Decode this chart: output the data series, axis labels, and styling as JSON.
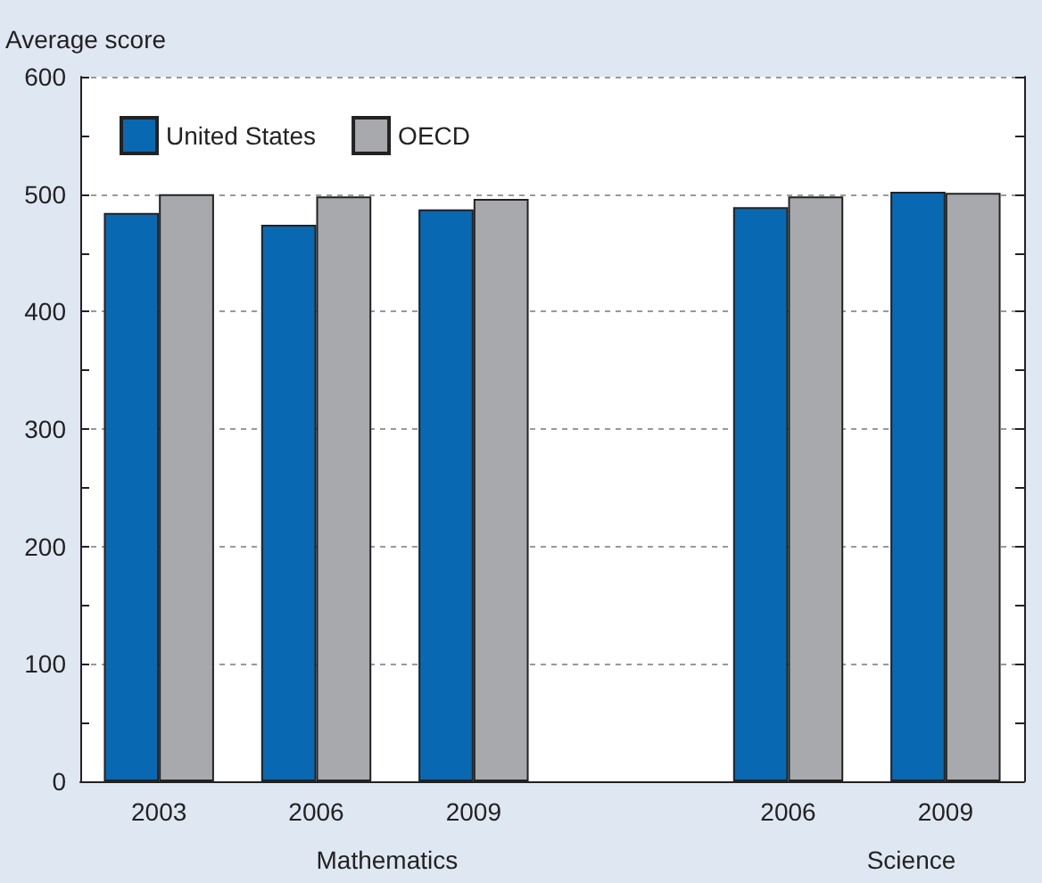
{
  "chart_data": {
    "type": "bar",
    "ylabel": "Average score",
    "categories": [
      "2003",
      "2006",
      "2009",
      null,
      "2006",
      "2009"
    ],
    "series": [
      {
        "name": "United States",
        "color": "#0868b2",
        "values": [
          484,
          474,
          487,
          null,
          489,
          502
        ]
      },
      {
        "name": "OECD",
        "color": "#a7a9ac",
        "values": [
          500,
          498,
          496,
          null,
          498,
          501
        ]
      }
    ],
    "ylim": [
      0,
      600
    ],
    "yticks": [
      0,
      100,
      200,
      300,
      400,
      500,
      600
    ],
    "grid": "y",
    "legend": "top left",
    "annotations": [
      "Mathematics",
      "Science"
    ]
  }
}
